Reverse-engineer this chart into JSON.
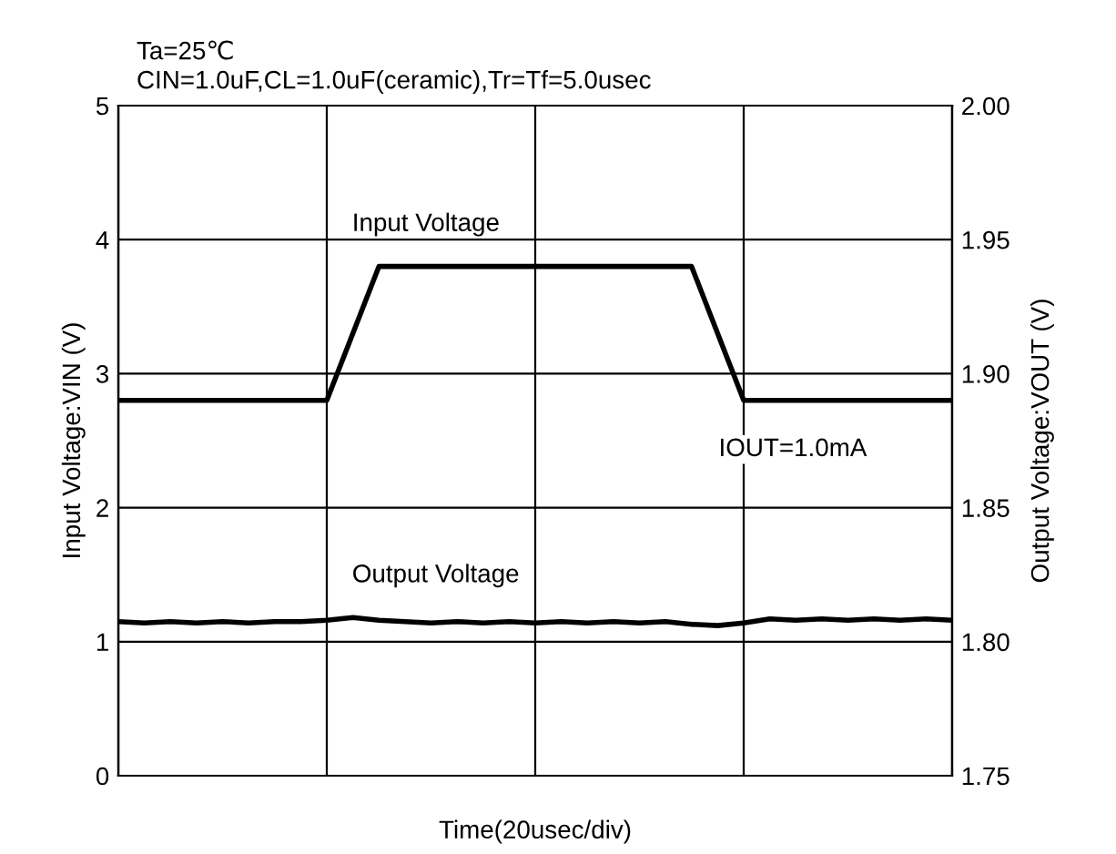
{
  "chart_data": {
    "type": "line",
    "xlabel": "Time(20usec/div)",
    "ylabel": "Input Voltage:VIN (V)",
    "y2label": "Output Voltage:VOUT (V)",
    "categories": [
      null,
      null,
      null,
      null,
      null,
      null,
      null,
      null,
      null,
      null,
      null,
      null,
      null,
      null,
      null,
      null,
      null,
      null,
      null,
      null,
      null,
      null,
      null,
      null,
      null,
      null,
      null,
      null,
      null,
      null,
      null,
      null,
      null
    ],
    "ylim": [
      0,
      5
    ],
    "yticks": [
      0,
      1,
      2,
      3,
      4,
      5
    ],
    "y2lim": [
      1.75,
      2.0
    ],
    "y2ticks": [
      {
        "value": 1.75,
        "label": "1.75"
      },
      {
        "value": 1.8,
        "label": "1.80"
      },
      {
        "value": 1.85,
        "label": "1.85"
      },
      {
        "value": 1.9,
        "label": "1.90"
      },
      {
        "value": 1.95,
        "label": "1.95"
      },
      {
        "value": 2.0,
        "label": "2.00"
      }
    ],
    "grid": true,
    "legend": false,
    "marker": "none",
    "line_style": "solid",
    "series": [
      {
        "name": "Input Voltage",
        "color": "#000000",
        "values": [
          2.8,
          2.8,
          2.8,
          2.8,
          2.8,
          2.8,
          2.8,
          2.8,
          2.8,
          3.3,
          3.8,
          3.8,
          3.8,
          3.8,
          3.8,
          3.8,
          3.8,
          3.8,
          3.8,
          3.8,
          3.8,
          3.8,
          3.8,
          3.3,
          2.8,
          2.8,
          2.8,
          2.8,
          2.8,
          2.8,
          2.8,
          2.8,
          2.8
        ]
      },
      {
        "name": "Output Voltage",
        "color": "#000000",
        "axis": "y2",
        "values": [
          1.8075,
          1.807,
          1.8075,
          1.807,
          1.8075,
          1.807,
          1.8075,
          1.8075,
          1.808,
          1.809,
          1.808,
          1.8075,
          1.807,
          1.8075,
          1.807,
          1.8075,
          1.807,
          1.8075,
          1.807,
          1.8075,
          1.807,
          1.8075,
          1.8065,
          1.806,
          1.807,
          1.8085,
          1.808,
          1.8085,
          1.808,
          1.8085,
          1.808,
          1.8085,
          1.808
        ]
      }
    ],
    "annotations": [
      "Ta=25℃",
      "CIN=1.0uF,CL=1.0uF(ceramic),Tr=Tf=5.0usec",
      {
        "text": "IOUT=1.0mA",
        "y": 2.8
      }
    ]
  }
}
